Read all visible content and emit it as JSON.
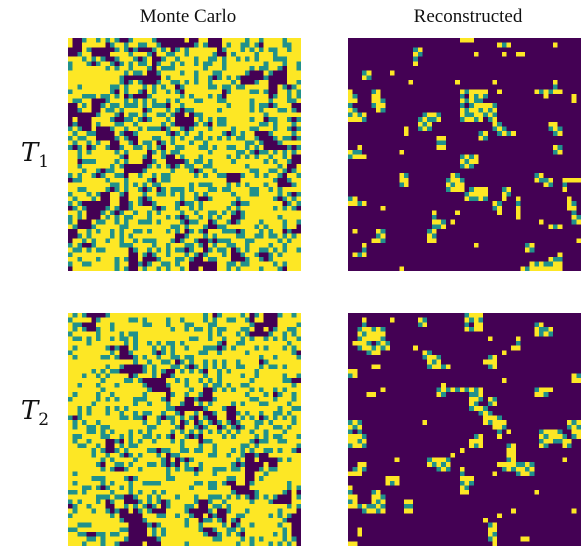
{
  "columns": [
    {
      "title": "Monte Carlo"
    },
    {
      "title": "Reconstructed"
    }
  ],
  "rows": [
    {
      "label_var": "T",
      "label_sub": "1"
    },
    {
      "label_var": "T",
      "label_sub": "2"
    }
  ],
  "colors": {
    "background": "#440154",
    "foreground": "#FDE725",
    "boundary": "#21918C"
  },
  "lattice_size": 50,
  "panels": [
    {
      "row": 0,
      "col": 0,
      "density": 0.55,
      "clustering": 5,
      "seed": 11
    },
    {
      "row": 0,
      "col": 1,
      "density": 0.08,
      "clustering": 2,
      "seed": 23
    },
    {
      "row": 1,
      "col": 0,
      "density": 0.62,
      "clustering": 5,
      "seed": 37
    },
    {
      "row": 1,
      "col": 1,
      "density": 0.09,
      "clustering": 2,
      "seed": 53
    }
  ]
}
